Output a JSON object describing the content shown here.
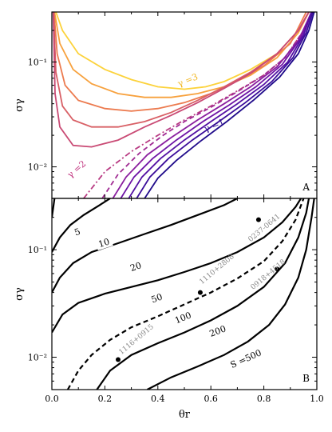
{
  "chart_data": [
    {
      "type": "line",
      "panel": "A",
      "xlim": [
        0,
        1
      ],
      "ylim": [
        0.005,
        0.3
      ],
      "yscale": "log",
      "ylabel": "σγ",
      "yticks": [
        {
          "value": 0.01,
          "label": "10⁻²"
        },
        {
          "value": 0.1,
          "label": "10⁻¹"
        }
      ],
      "annotations": [
        {
          "text": "γ =3",
          "color": "#f2b720"
        },
        {
          "text": "γ =1",
          "color": "#2a0a8c"
        },
        {
          "text": "γ =2",
          "color": "#c0307c"
        }
      ],
      "series": [
        {
          "color": "#fcd23a",
          "dash": "solid",
          "points": [
            [
              0.015,
              0.3
            ],
            [
              0.04,
              0.2
            ],
            [
              0.1,
              0.12
            ],
            [
              0.2,
              0.085
            ],
            [
              0.3,
              0.068
            ],
            [
              0.4,
              0.058
            ],
            [
              0.5,
              0.055
            ],
            [
              0.58,
              0.058
            ],
            [
              0.65,
              0.065
            ],
            [
              0.75,
              0.085
            ],
            [
              0.85,
              0.12
            ],
            [
              0.93,
              0.2
            ],
            [
              0.97,
              0.3
            ]
          ]
        },
        {
          "color": "#f7a13d",
          "dash": "solid",
          "points": [
            [
              0.01,
              0.3
            ],
            [
              0.03,
              0.15
            ],
            [
              0.08,
              0.085
            ],
            [
              0.15,
              0.062
            ],
            [
              0.25,
              0.05
            ],
            [
              0.35,
              0.046
            ],
            [
              0.45,
              0.046
            ],
            [
              0.55,
              0.05
            ],
            [
              0.65,
              0.058
            ],
            [
              0.75,
              0.075
            ],
            [
              0.85,
              0.11
            ],
            [
              0.93,
              0.19
            ],
            [
              0.97,
              0.3
            ]
          ]
        },
        {
          "color": "#ec7a4e",
          "dash": "solid",
          "points": [
            [
              0.008,
              0.3
            ],
            [
              0.02,
              0.12
            ],
            [
              0.05,
              0.06
            ],
            [
              0.1,
              0.043
            ],
            [
              0.2,
              0.036
            ],
            [
              0.3,
              0.034
            ],
            [
              0.4,
              0.036
            ],
            [
              0.5,
              0.041
            ],
            [
              0.6,
              0.05
            ],
            [
              0.7,
              0.066
            ],
            [
              0.8,
              0.092
            ],
            [
              0.9,
              0.15
            ],
            [
              0.96,
              0.3
            ]
          ]
        },
        {
          "color": "#d85f65",
          "dash": "solid",
          "points": [
            [
              0.006,
              0.3
            ],
            [
              0.015,
              0.08
            ],
            [
              0.04,
              0.038
            ],
            [
              0.08,
              0.028
            ],
            [
              0.15,
              0.024
            ],
            [
              0.25,
              0.024
            ],
            [
              0.35,
              0.027
            ],
            [
              0.45,
              0.033
            ],
            [
              0.55,
              0.043
            ],
            [
              0.65,
              0.058
            ],
            [
              0.75,
              0.08
            ],
            [
              0.85,
              0.12
            ],
            [
              0.93,
              0.2
            ],
            [
              0.97,
              0.3
            ]
          ]
        },
        {
          "color": "#c94a74",
          "dash": "solid",
          "points": [
            [
              0.005,
              0.3
            ],
            [
              0.012,
              0.05
            ],
            [
              0.03,
              0.024
            ],
            [
              0.08,
              0.016
            ],
            [
              0.15,
              0.0155
            ],
            [
              0.25,
              0.018
            ],
            [
              0.35,
              0.024
            ],
            [
              0.45,
              0.031
            ],
            [
              0.55,
              0.041
            ],
            [
              0.65,
              0.056
            ],
            [
              0.75,
              0.078
            ],
            [
              0.85,
              0.12
            ],
            [
              0.93,
              0.2
            ],
            [
              0.97,
              0.3
            ]
          ]
        },
        {
          "color": "#b83a82",
          "dash": "dashdot",
          "points": [
            [
              0.12,
              0.005
            ],
            [
              0.2,
              0.009
            ],
            [
              0.3,
              0.014
            ],
            [
              0.4,
              0.02
            ],
            [
              0.5,
              0.028
            ],
            [
              0.6,
              0.038
            ],
            [
              0.7,
              0.053
            ],
            [
              0.8,
              0.075
            ],
            [
              0.88,
              0.11
            ],
            [
              0.95,
              0.2
            ],
            [
              0.98,
              0.3
            ]
          ]
        },
        {
          "color": "#a02b93",
          "dash": "dashed",
          "points": [
            [
              0.19,
              0.005
            ],
            [
              0.25,
              0.0085
            ],
            [
              0.33,
              0.0135
            ],
            [
              0.42,
              0.02
            ],
            [
              0.5,
              0.027
            ],
            [
              0.6,
              0.037
            ],
            [
              0.7,
              0.052
            ],
            [
              0.8,
              0.075
            ],
            [
              0.88,
              0.11
            ],
            [
              0.95,
              0.2
            ],
            [
              0.98,
              0.3
            ]
          ]
        },
        {
          "color": "#8a1f9f",
          "dash": "solid",
          "points": [
            [
              0.23,
              0.005
            ],
            [
              0.28,
              0.008
            ],
            [
              0.36,
              0.013
            ],
            [
              0.45,
              0.019
            ],
            [
              0.55,
              0.028
            ],
            [
              0.65,
              0.04
            ],
            [
              0.75,
              0.058
            ],
            [
              0.85,
              0.09
            ],
            [
              0.93,
              0.16
            ],
            [
              0.98,
              0.3
            ]
          ]
        },
        {
          "color": "#6e14a6",
          "dash": "solid",
          "points": [
            [
              0.26,
              0.005
            ],
            [
              0.31,
              0.008
            ],
            [
              0.38,
              0.012
            ],
            [
              0.47,
              0.018
            ],
            [
              0.57,
              0.027
            ],
            [
              0.67,
              0.039
            ],
            [
              0.77,
              0.058
            ],
            [
              0.87,
              0.095
            ],
            [
              0.94,
              0.17
            ],
            [
              0.98,
              0.3
            ]
          ]
        },
        {
          "color": "#5310a3",
          "dash": "solid",
          "points": [
            [
              0.29,
              0.005
            ],
            [
              0.34,
              0.008
            ],
            [
              0.41,
              0.012
            ],
            [
              0.5,
              0.018
            ],
            [
              0.6,
              0.027
            ],
            [
              0.7,
              0.04
            ],
            [
              0.8,
              0.061
            ],
            [
              0.89,
              0.1
            ],
            [
              0.95,
              0.18
            ],
            [
              0.98,
              0.3
            ]
          ]
        },
        {
          "color": "#3a0c9a",
          "dash": "solid",
          "points": [
            [
              0.32,
              0.005
            ],
            [
              0.37,
              0.008
            ],
            [
              0.44,
              0.012
            ],
            [
              0.53,
              0.018
            ],
            [
              0.63,
              0.027
            ],
            [
              0.73,
              0.041
            ],
            [
              0.83,
              0.065
            ],
            [
              0.91,
              0.11
            ],
            [
              0.96,
              0.19
            ],
            [
              0.985,
              0.3
            ]
          ]
        },
        {
          "color": "#1f0a8a",
          "dash": "solid",
          "points": [
            [
              0.35,
              0.005
            ],
            [
              0.4,
              0.0078
            ],
            [
              0.47,
              0.0115
            ],
            [
              0.56,
              0.0175
            ],
            [
              0.66,
              0.027
            ],
            [
              0.76,
              0.043
            ],
            [
              0.86,
              0.072
            ],
            [
              0.93,
              0.12
            ],
            [
              0.97,
              0.2
            ],
            [
              0.99,
              0.3
            ]
          ]
        }
      ]
    },
    {
      "type": "line",
      "panel": "B",
      "xlim": [
        0,
        1
      ],
      "ylim": [
        0.005,
        0.3
      ],
      "yscale": "log",
      "xlabel": "θr",
      "ylabel": "σγ",
      "xticks": [
        0.0,
        0.2,
        0.4,
        0.6,
        0.8,
        1.0
      ],
      "xtick_labels": [
        "0.0",
        "0.2",
        "0.4",
        "0.6",
        "0.8",
        "1.0"
      ],
      "yticks": [
        {
          "value": 0.01,
          "label": "10⁻²"
        },
        {
          "value": 0.1,
          "label": "10⁻¹"
        }
      ],
      "contour_labels": [
        "5",
        "10",
        "20",
        "50",
        "100",
        "200",
        "S =500"
      ],
      "series": [
        {
          "name": "5",
          "dash": "solid",
          "points": [
            [
              0.0,
              0.2
            ],
            [
              0.01,
              0.3
            ]
          ]
        },
        {
          "name": "10",
          "dash": "solid",
          "points": [
            [
              0.0,
              0.095
            ],
            [
              0.03,
              0.13
            ],
            [
              0.07,
              0.17
            ],
            [
              0.12,
              0.21
            ],
            [
              0.18,
              0.26
            ],
            [
              0.22,
              0.3
            ]
          ]
        },
        {
          "name": "20",
          "dash": "solid",
          "points": [
            [
              0.0,
              0.04
            ],
            [
              0.03,
              0.055
            ],
            [
              0.08,
              0.075
            ],
            [
              0.15,
              0.095
            ],
            [
              0.25,
              0.115
            ],
            [
              0.35,
              0.14
            ],
            [
              0.45,
              0.17
            ],
            [
              0.55,
              0.21
            ],
            [
              0.65,
              0.26
            ],
            [
              0.7,
              0.3
            ]
          ]
        },
        {
          "name": "50",
          "dash": "solid",
          "points": [
            [
              0.0,
              0.017
            ],
            [
              0.04,
              0.025
            ],
            [
              0.1,
              0.032
            ],
            [
              0.2,
              0.039
            ],
            [
              0.3,
              0.045
            ],
            [
              0.4,
              0.052
            ],
            [
              0.5,
              0.062
            ],
            [
              0.6,
              0.075
            ],
            [
              0.7,
              0.095
            ],
            [
              0.8,
              0.13
            ],
            [
              0.87,
              0.18
            ],
            [
              0.92,
              0.25
            ],
            [
              0.94,
              0.3
            ]
          ]
        },
        {
          "name": "100",
          "dash": "dashed",
          "points": [
            [
              0.06,
              0.005
            ],
            [
              0.1,
              0.0075
            ],
            [
              0.15,
              0.0105
            ],
            [
              0.22,
              0.0145
            ],
            [
              0.3,
              0.019
            ],
            [
              0.4,
              0.024
            ],
            [
              0.5,
              0.031
            ],
            [
              0.6,
              0.04
            ],
            [
              0.7,
              0.054
            ],
            [
              0.8,
              0.078
            ],
            [
              0.87,
              0.12
            ],
            [
              0.92,
              0.19
            ],
            [
              0.95,
              0.3
            ]
          ]
        },
        {
          "name": "200",
          "dash": "solid",
          "points": [
            [
              0.17,
              0.005
            ],
            [
              0.22,
              0.0075
            ],
            [
              0.3,
              0.0105
            ],
            [
              0.4,
              0.0135
            ],
            [
              0.5,
              0.017
            ],
            [
              0.6,
              0.022
            ],
            [
              0.7,
              0.03
            ],
            [
              0.8,
              0.045
            ],
            [
              0.88,
              0.075
            ],
            [
              0.93,
              0.13
            ],
            [
              0.96,
              0.22
            ],
            [
              0.97,
              0.3
            ]
          ]
        },
        {
          "name": "S =500",
          "dash": "solid",
          "points": [
            [
              0.36,
              0.005
            ],
            [
              0.45,
              0.0065
            ],
            [
              0.55,
              0.0082
            ],
            [
              0.65,
              0.0105
            ],
            [
              0.74,
              0.014
            ],
            [
              0.82,
              0.02
            ],
            [
              0.88,
              0.031
            ],
            [
              0.93,
              0.055
            ],
            [
              0.96,
              0.1
            ],
            [
              0.98,
              0.2
            ],
            [
              0.99,
              0.3
            ]
          ]
        }
      ],
      "objects": [
        {
          "name": "0237-0641",
          "x": 0.78,
          "y": 0.19
        },
        {
          "name": "1110+2808",
          "x": 0.56,
          "y": 0.04
        },
        {
          "name": "0918+4518",
          "x": 0.85,
          "y": 0.066
        },
        {
          "name": "1116+0915",
          "x": 0.25,
          "y": 0.0095
        }
      ]
    }
  ]
}
